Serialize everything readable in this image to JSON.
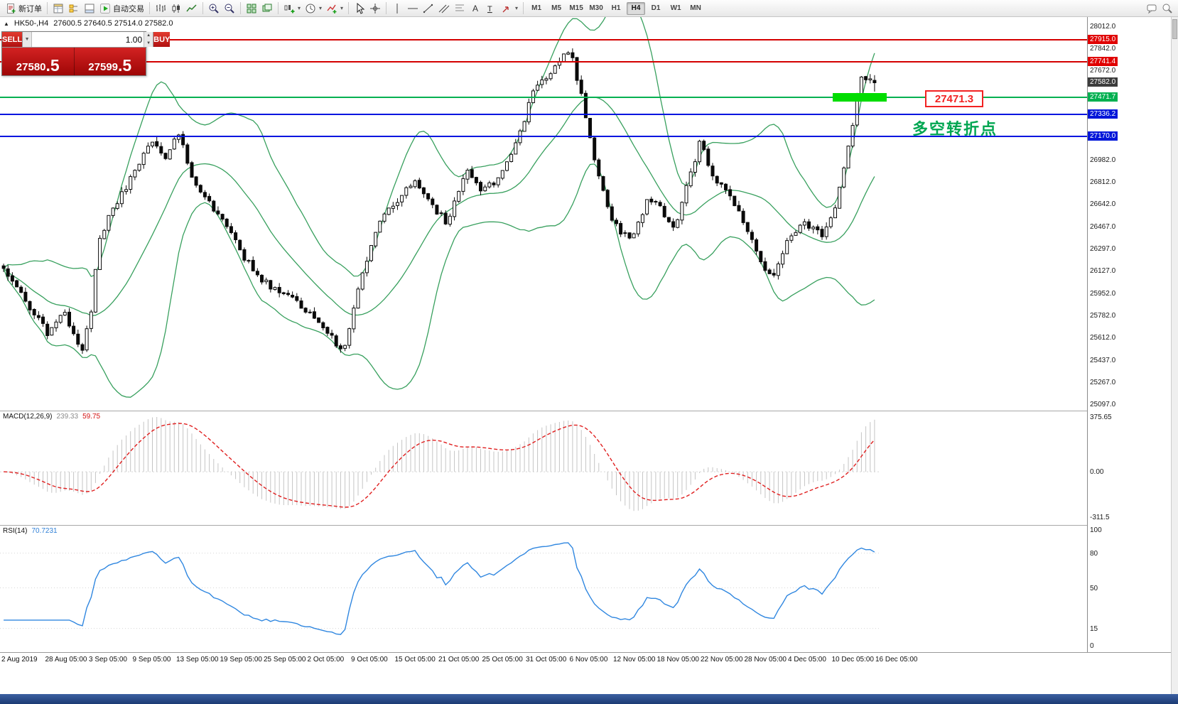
{
  "toolbar": {
    "new_order_label": "新订单",
    "autotrading_label": "自动交易",
    "timeframes": [
      "M1",
      "M5",
      "M15",
      "M30",
      "H1",
      "H4",
      "D1",
      "W1",
      "MN"
    ],
    "active_timeframe": "H4"
  },
  "chart_header": {
    "collapse_icon": "▲",
    "symbol": "HK50-,H4",
    "ohlc": "27600.5 27640.5 27514.0 27582.0"
  },
  "trade_panel": {
    "sell_label": "SELL",
    "buy_label": "BUY",
    "volume": "1.00",
    "sell_price_main": "27580",
    "sell_price_frac": ".5",
    "buy_price_main": "27599",
    "buy_price_frac": ".5"
  },
  "price_axis": {
    "ticks": [
      "28012.0",
      "27842.0",
      "27672.0",
      "26982.0",
      "26812.0",
      "26642.0",
      "26467.0",
      "26297.0",
      "26127.0",
      "25952.0",
      "25782.0",
      "25612.0",
      "25437.0",
      "25267.0",
      "25097.0"
    ],
    "badges": [
      {
        "text": "27915.0",
        "price": 27915.0,
        "type": "red"
      },
      {
        "text": "27741.4",
        "price": 27741.4,
        "type": "red"
      },
      {
        "text": "27582.0",
        "price": 27582.0,
        "type": "current"
      },
      {
        "text": "27471.7",
        "price": 27471.7,
        "type": "green"
      },
      {
        "text": "27336.2",
        "price": 27336.2,
        "type": "blue"
      },
      {
        "text": "27170.0",
        "price": 27170.0,
        "type": "blue"
      }
    ]
  },
  "hlines": [
    {
      "price": 27915.0,
      "type": "red"
    },
    {
      "price": 27741.4,
      "type": "red"
    },
    {
      "price": 27471.7,
      "type": "green"
    },
    {
      "price": 27336.2,
      "type": "blue"
    },
    {
      "price": 27170.0,
      "type": "blue"
    }
  ],
  "annotations": {
    "price_label": "27471.3",
    "note_text": "多空转折点"
  },
  "macd_panel": {
    "name": "MACD(12,26,9)",
    "value_main": "239.33",
    "value_signal": "59.75",
    "axis_max": "375.65",
    "axis_zero": "0.00",
    "axis_min": "-311.5"
  },
  "rsi_panel": {
    "name": "RSI(14)",
    "value": "70.7231",
    "levels": [
      100,
      80,
      50,
      15,
      0
    ]
  },
  "time_axis": [
    "2 Aug 2019",
    "28 Aug 05:00",
    "3 Sep 05:00",
    "9 Sep 05:00",
    "13 Sep 05:00",
    "19 Sep 05:00",
    "25 Sep 05:00",
    "2 Oct 05:00",
    "9 Oct 05:00",
    "15 Oct 05:00",
    "21 Oct 05:00",
    "25 Oct 05:00",
    "31 Oct 05:00",
    "6 Nov 05:00",
    "12 Nov 05:00",
    "18 Nov 05:00",
    "22 Nov 05:00",
    "28 Nov 05:00",
    "4 Dec 05:00",
    "10 Dec 05:00",
    "16 Dec 05:00"
  ],
  "chart_data": {
    "type": "candlestick",
    "symbol": "HK50-",
    "timeframe": "H4",
    "current": {
      "open": 27600.5,
      "high": 27640.5,
      "low": 27514.0,
      "close": 27582.0,
      "bid": 27580.5,
      "ask": 27599.5
    },
    "price_range": [
      25097.0,
      28012.0
    ],
    "candle_count": 200,
    "price_path": [
      [
        0.0,
        26150
      ],
      [
        0.025,
        25900
      ],
      [
        0.05,
        25650
      ],
      [
        0.07,
        25800
      ],
      [
        0.09,
        25520
      ],
      [
        0.1,
        25800
      ],
      [
        0.11,
        26400
      ],
      [
        0.13,
        26650
      ],
      [
        0.15,
        26900
      ],
      [
        0.17,
        27150
      ],
      [
        0.185,
        27000
      ],
      [
        0.2,
        27230
      ],
      [
        0.215,
        26850
      ],
      [
        0.23,
        26700
      ],
      [
        0.25,
        26550
      ],
      [
        0.27,
        26300
      ],
      [
        0.29,
        26100
      ],
      [
        0.31,
        26000
      ],
      [
        0.33,
        25950
      ],
      [
        0.35,
        25800
      ],
      [
        0.37,
        25650
      ],
      [
        0.39,
        25530
      ],
      [
        0.41,
        26050
      ],
      [
        0.43,
        26500
      ],
      [
        0.45,
        26650
      ],
      [
        0.47,
        26820
      ],
      [
        0.49,
        26650
      ],
      [
        0.51,
        26500
      ],
      [
        0.53,
        26900
      ],
      [
        0.55,
        26750
      ],
      [
        0.57,
        26850
      ],
      [
        0.59,
        27150
      ],
      [
        0.61,
        27550
      ],
      [
        0.63,
        27680
      ],
      [
        0.65,
        27850
      ],
      [
        0.663,
        27500
      ],
      [
        0.68,
        26950
      ],
      [
        0.7,
        26500
      ],
      [
        0.72,
        26350
      ],
      [
        0.74,
        26700
      ],
      [
        0.755,
        26600
      ],
      [
        0.77,
        26450
      ],
      [
        0.79,
        26900
      ],
      [
        0.8,
        27150
      ],
      [
        0.815,
        26850
      ],
      [
        0.83,
        26750
      ],
      [
        0.85,
        26500
      ],
      [
        0.87,
        26200
      ],
      [
        0.883,
        26050
      ],
      [
        0.9,
        26350
      ],
      [
        0.92,
        26500
      ],
      [
        0.94,
        26400
      ],
      [
        0.955,
        26600
      ],
      [
        0.97,
        27100
      ],
      [
        0.985,
        27650
      ],
      [
        1.0,
        27582
      ]
    ],
    "indicators": [
      {
        "name": "Bollinger Bands",
        "period": 20,
        "deviation": 2
      },
      {
        "name": "MACD",
        "fast": 12,
        "slow": 26,
        "signal": 9,
        "values": [
          239.33,
          59.75
        ]
      },
      {
        "name": "RSI",
        "period": 14,
        "value": 70.7231
      }
    ]
  }
}
